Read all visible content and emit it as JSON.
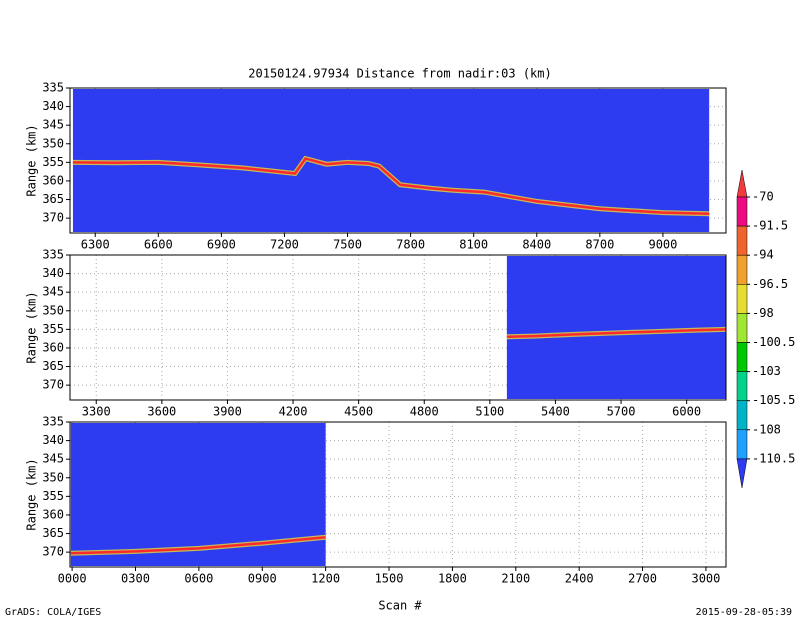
{
  "title": "20150124.97934    Distance from nadir:03 (km)",
  "x_label": "Scan #",
  "footer_left": "GrADS: COLA/IGES",
  "footer_right": "2015-09-28-05:39",
  "chart_data": [
    {
      "type": "line",
      "y_label": "Range (km)",
      "x": [
        6194,
        6400,
        6600,
        6800,
        7000,
        7250,
        7300,
        7400,
        7500,
        7600,
        7650,
        7750,
        7900,
        8000,
        8150,
        8300,
        8400,
        8550,
        8700,
        8850,
        9000,
        9220
      ],
      "values": [
        355,
        355.1,
        355,
        355.7,
        356.5,
        358,
        354,
        355.5,
        355,
        355.3,
        356,
        361,
        362,
        362.5,
        363,
        364.5,
        365.5,
        366.5,
        367.5,
        368,
        368.5,
        368.8
      ],
      "color": "#ff2a2a",
      "fill_color": "#2d3cf0",
      "xlim": [
        6180,
        9300
      ],
      "xticks": [
        6300,
        6600,
        6900,
        7200,
        7500,
        7800,
        8100,
        8400,
        8700,
        9000
      ],
      "ylim": [
        335,
        374
      ],
      "y_inverted": true,
      "yticks": [
        335,
        340,
        345,
        350,
        355,
        360,
        365,
        370
      ],
      "grid": true
    },
    {
      "type": "line",
      "y_label": "Range (km)",
      "x": [
        5178,
        5300,
        5500,
        5700,
        5900,
        6050,
        6180
      ],
      "values": [
        357,
        356.8,
        356.3,
        355.9,
        355.5,
        355.2,
        355
      ],
      "color": "#ff2a2a",
      "fill_color": "#2d3cf0",
      "xlim": [
        3180,
        6180
      ],
      "xticks": [
        3300,
        3600,
        3900,
        4200,
        4500,
        4800,
        5100,
        5400,
        5700,
        6000
      ],
      "ylim": [
        335,
        374
      ],
      "y_inverted": true,
      "yticks": [
        335,
        340,
        345,
        350,
        355,
        360,
        365,
        370
      ],
      "grid": true
    },
    {
      "type": "line",
      "y_label": "Range (km)",
      "x": [
        -6,
        300,
        600,
        900,
        1200
      ],
      "values": [
        370.3,
        369.8,
        369,
        367.6,
        366
      ],
      "color": "#ff2a2a",
      "fill_color": "#2d3cf0",
      "xlim": [
        -10,
        3095
      ],
      "xticks": [
        {
          "value": 0,
          "label": "0000"
        },
        {
          "value": 300,
          "label": "0300"
        },
        {
          "value": 600,
          "label": "0600"
        },
        {
          "value": 900,
          "label": "0900"
        },
        1200,
        1500,
        1800,
        2100,
        2400,
        2700,
        3000
      ],
      "ylim": [
        335,
        374
      ],
      "y_inverted": true,
      "yticks": [
        335,
        340,
        345,
        350,
        355,
        360,
        365,
        370
      ],
      "grid": true
    }
  ],
  "colorbar": {
    "levels": [
      -70,
      -91.5,
      -94,
      -96.5,
      -98,
      -100.5,
      -103,
      -105.5,
      -108,
      -110.5
    ],
    "colors": [
      "#f03c3c",
      "#f00a82",
      "#f0642d",
      "#f0a02d",
      "#e6dc32",
      "#a0e632",
      "#00c800",
      "#00d28c",
      "#00b4c8",
      "#20a0ff",
      "#2d3cf0"
    ]
  }
}
